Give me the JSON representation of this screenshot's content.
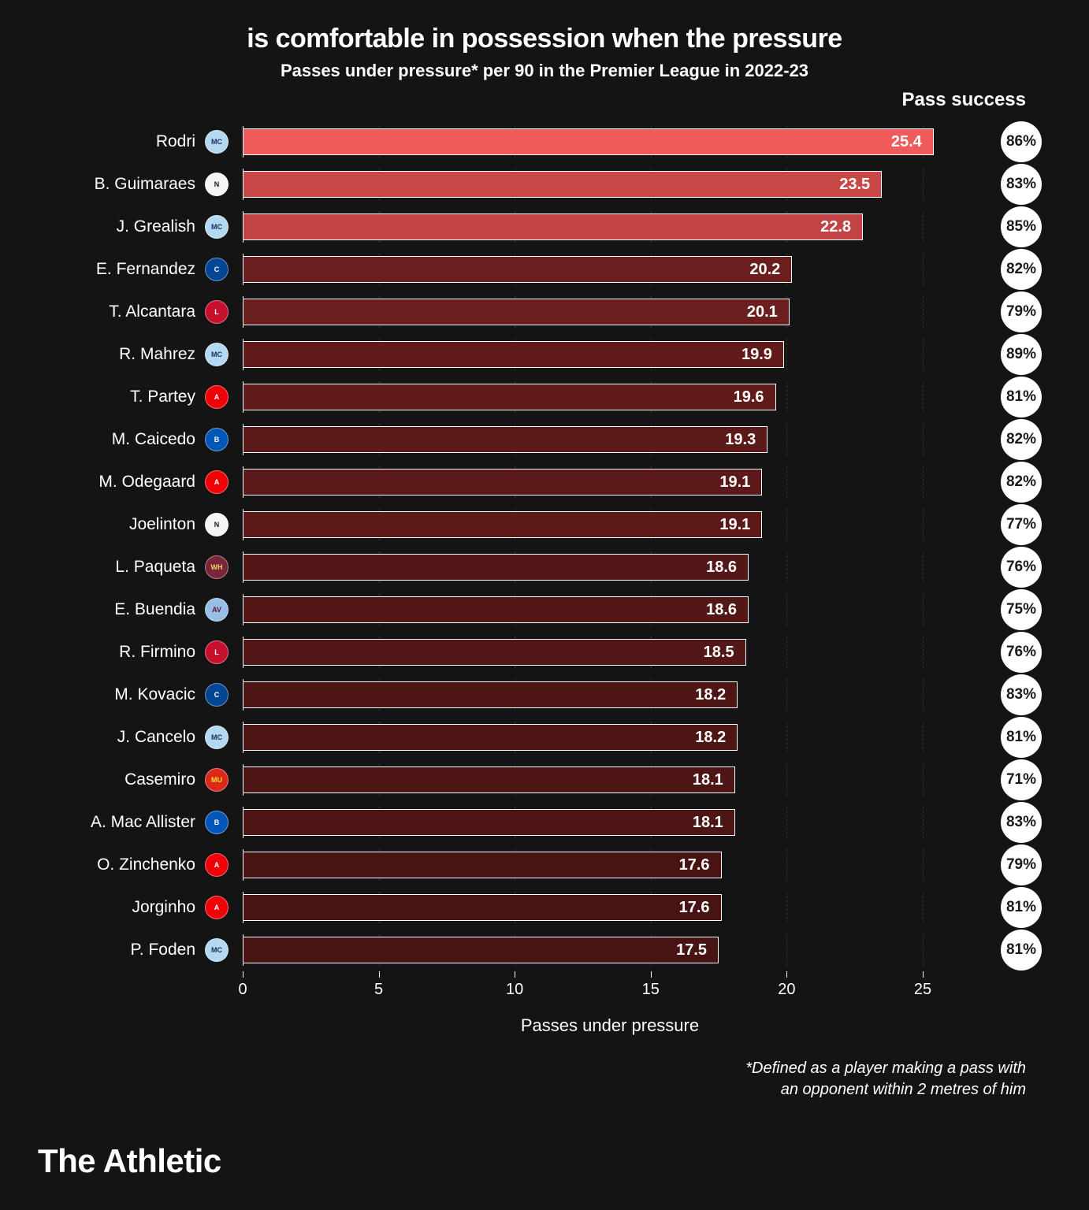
{
  "chart": {
    "type": "bar-horizontal",
    "title": "is comfortable in possession when the pressure",
    "subtitle": "Passes under pressure* per 90 in the Premier League in 2022-23",
    "pass_success_header": "Pass success",
    "x_axis_label": "Passes under pressure",
    "footnote_line1": "*Defined as a player making a pass with",
    "footnote_line2": "an opponent within 2 metres of him",
    "brand": "The Athletic",
    "background_color": "#141414",
    "text_color": "#ffffff",
    "grid_color": "#555555",
    "xlim": [
      0,
      27
    ],
    "x_ticks": [
      0,
      5,
      10,
      15,
      20,
      25
    ],
    "bars": [
      {
        "player": "Rodri",
        "club": "Man City",
        "club_bg": "#b3d9f2",
        "club_fg": "#1c2c5b",
        "value": 25.4,
        "success": "86%",
        "bar_color": "#ef5a5a",
        "highlight": true
      },
      {
        "player": "B. Guimaraes",
        "club": "Newcastle",
        "club_bg": "#f5f5f5",
        "club_fg": "#1a1a1a",
        "value": 23.5,
        "success": "83%",
        "bar_color": "#c84848",
        "highlight": true
      },
      {
        "player": "J. Grealish",
        "club": "Man City",
        "club_bg": "#b3d9f2",
        "club_fg": "#1c2c5b",
        "value": 22.8,
        "success": "85%",
        "bar_color": "#c24343",
        "highlight": true
      },
      {
        "player": "E. Fernandez",
        "club": "Chelsea",
        "club_bg": "#034694",
        "club_fg": "#ffffff",
        "value": 20.2,
        "success": "82%",
        "bar_color": "#6a1e1e",
        "highlight": false
      },
      {
        "player": "T. Alcantara",
        "club": "Liverpool",
        "club_bg": "#c8102e",
        "club_fg": "#ffffff",
        "value": 20.1,
        "success": "79%",
        "bar_color": "#6a1e1e",
        "highlight": false
      },
      {
        "player": "R. Mahrez",
        "club": "Man City",
        "club_bg": "#b3d9f2",
        "club_fg": "#1c2c5b",
        "value": 19.9,
        "success": "89%",
        "bar_color": "#621b1b",
        "highlight": false
      },
      {
        "player": "T. Partey",
        "club": "Arsenal",
        "club_bg": "#ef0107",
        "club_fg": "#ffffff",
        "value": 19.6,
        "success": "81%",
        "bar_color": "#621b1b",
        "highlight": false
      },
      {
        "player": "M. Caicedo",
        "club": "Brighton",
        "club_bg": "#0057b8",
        "club_fg": "#ffffff",
        "value": 19.3,
        "success": "82%",
        "bar_color": "#5b1919",
        "highlight": false
      },
      {
        "player": "M. Odegaard",
        "club": "Arsenal",
        "club_bg": "#ef0107",
        "club_fg": "#ffffff",
        "value": 19.1,
        "success": "82%",
        "bar_color": "#5b1919",
        "highlight": false
      },
      {
        "player": "Joelinton",
        "club": "Newcastle",
        "club_bg": "#f5f5f5",
        "club_fg": "#1a1a1a",
        "value": 19.1,
        "success": "77%",
        "bar_color": "#5b1919",
        "highlight": false
      },
      {
        "player": "L. Paqueta",
        "club": "West Ham",
        "club_bg": "#7a263a",
        "club_fg": "#f3d459",
        "value": 18.6,
        "success": "76%",
        "bar_color": "#541717",
        "highlight": false
      },
      {
        "player": "E. Buendia",
        "club": "Aston Villa",
        "club_bg": "#95bfe5",
        "club_fg": "#670e36",
        "value": 18.6,
        "success": "75%",
        "bar_color": "#541717",
        "highlight": false
      },
      {
        "player": "R. Firmino",
        "club": "Liverpool",
        "club_bg": "#c8102e",
        "club_fg": "#ffffff",
        "value": 18.5,
        "success": "76%",
        "bar_color": "#541717",
        "highlight": false
      },
      {
        "player": "M. Kovacic",
        "club": "Chelsea",
        "club_bg": "#034694",
        "club_fg": "#ffffff",
        "value": 18.2,
        "success": "83%",
        "bar_color": "#4e1515",
        "highlight": false
      },
      {
        "player": "J. Cancelo",
        "club": "Man City",
        "club_bg": "#b3d9f2",
        "club_fg": "#1c2c5b",
        "value": 18.2,
        "success": "81%",
        "bar_color": "#4e1515",
        "highlight": false
      },
      {
        "player": "Casemiro",
        "club": "Man Utd",
        "club_bg": "#da291c",
        "club_fg": "#fbe122",
        "value": 18.1,
        "success": "71%",
        "bar_color": "#4e1515",
        "highlight": false
      },
      {
        "player": "A. Mac Allister",
        "club": "Brighton",
        "club_bg": "#0057b8",
        "club_fg": "#ffffff",
        "value": 18.1,
        "success": "83%",
        "bar_color": "#4e1515",
        "highlight": false
      },
      {
        "player": "O. Zinchenko",
        "club": "Arsenal",
        "club_bg": "#ef0107",
        "club_fg": "#ffffff",
        "value": 17.6,
        "success": "79%",
        "bar_color": "#471313",
        "highlight": false
      },
      {
        "player": "Jorginho",
        "club": "Arsenal",
        "club_bg": "#ef0107",
        "club_fg": "#ffffff",
        "value": 17.6,
        "success": "81%",
        "bar_color": "#471313",
        "highlight": false
      },
      {
        "player": "P. Foden",
        "club": "Man City",
        "club_bg": "#b3d9f2",
        "club_fg": "#1c2c5b",
        "value": 17.5,
        "success": "81%",
        "bar_color": "#471313",
        "highlight": false
      }
    ]
  }
}
